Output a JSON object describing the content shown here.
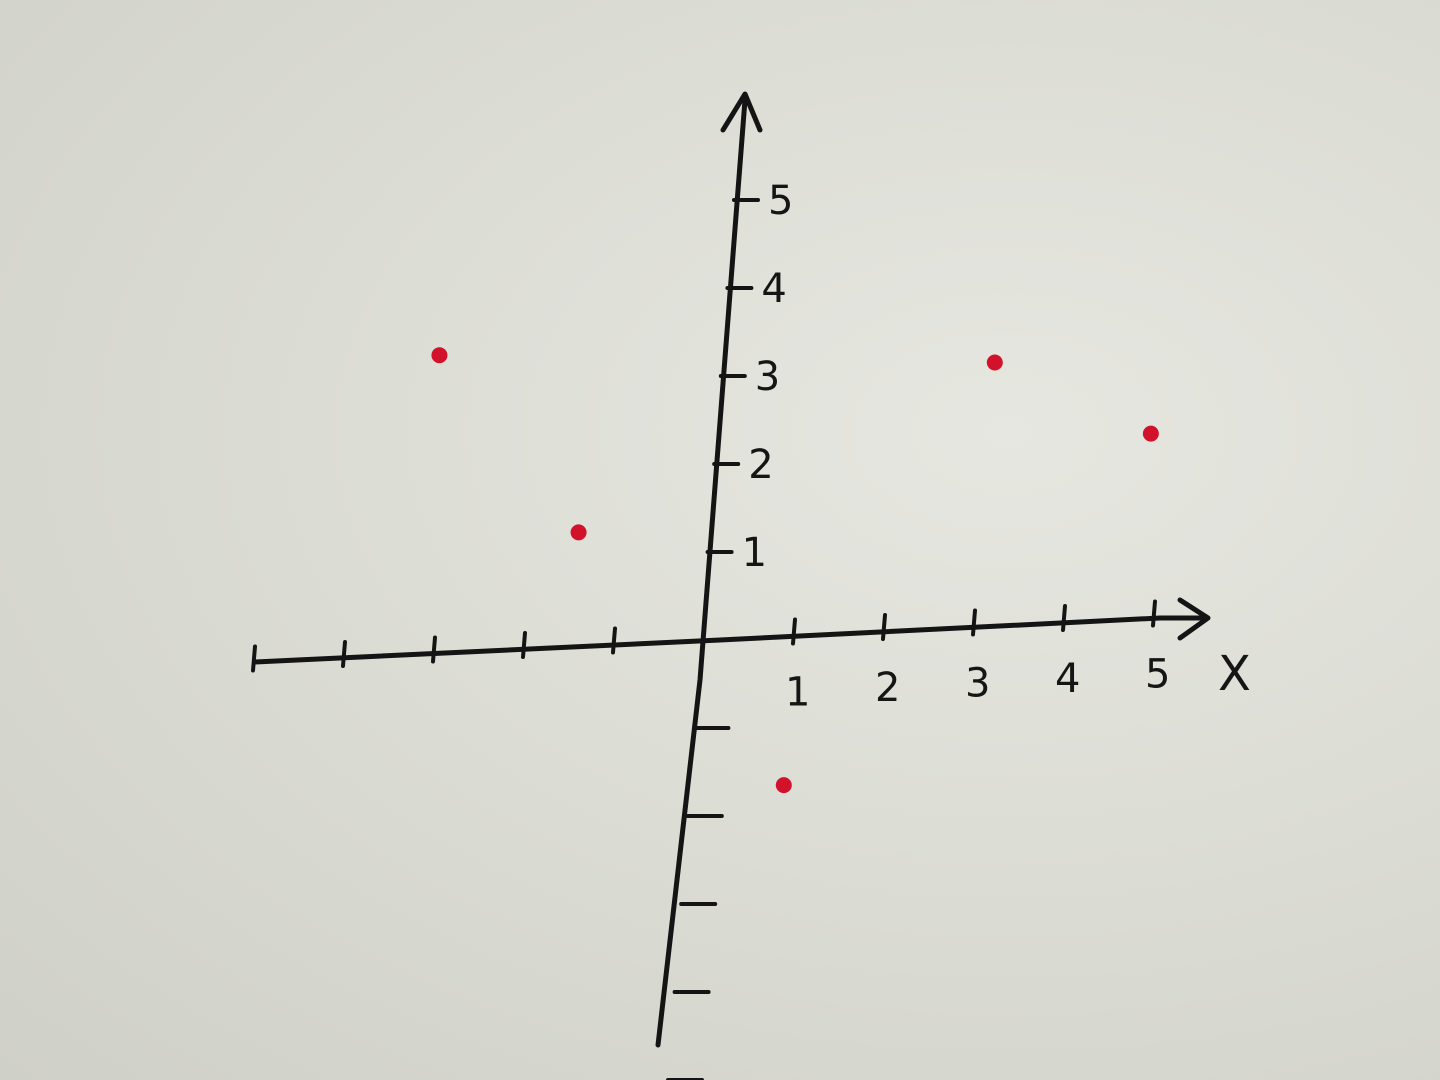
{
  "chart_data": {
    "type": "scatter",
    "title": "",
    "xlabel": "X",
    "ylabel": "",
    "x_tick_labels": [
      "1",
      "2",
      "3",
      "4",
      "5"
    ],
    "y_tick_labels": [
      "1",
      "2",
      "3",
      "4",
      "5"
    ],
    "xlim": [
      -5,
      5
    ],
    "ylim": [
      -5,
      5
    ],
    "grid": false,
    "legend": "none",
    "series": [
      {
        "points": [
          {
            "x": -3.2,
            "y": 3.4
          },
          {
            "x": -1.5,
            "y": 1.3
          },
          {
            "x": 3.0,
            "y": 3.0
          },
          {
            "x": 4.8,
            "y": 2.1
          },
          {
            "x": 1.0,
            "y": -1.7
          }
        ],
        "color": "#d2122b"
      }
    ],
    "axis_color": "#141414",
    "background": "whiteboard"
  }
}
